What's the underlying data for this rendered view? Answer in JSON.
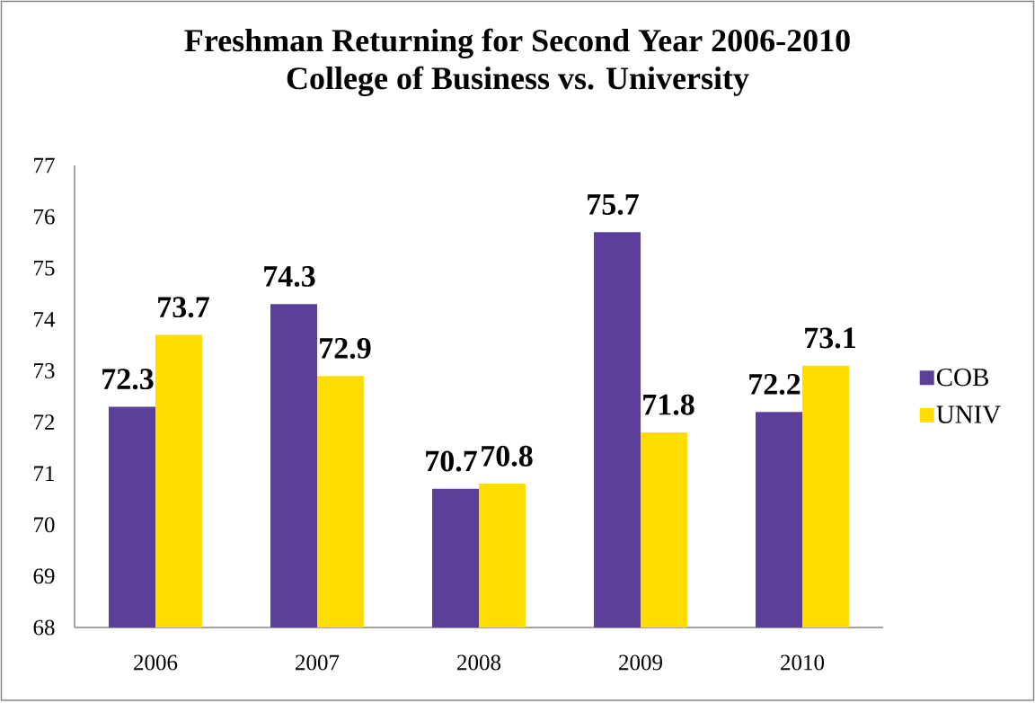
{
  "chart_data": {
    "type": "bar",
    "title": "Freshman Returning for Second Year 2006-2010",
    "subtitle": "College of Business vs. University",
    "categories": [
      "2006",
      "2007",
      "2008",
      "2009",
      "2010"
    ],
    "series": [
      {
        "name": "COB",
        "color": "#5b3f99",
        "values": [
          72.3,
          74.3,
          70.7,
          75.7,
          72.2
        ]
      },
      {
        "name": "UNIV",
        "color": "#ffdd00",
        "values": [
          73.7,
          72.9,
          70.8,
          71.8,
          73.1
        ]
      }
    ],
    "ylim": [
      68,
      77
    ],
    "yticks": [
      68,
      69,
      70,
      71,
      72,
      73,
      74,
      75,
      76,
      77
    ],
    "data_labels": true,
    "legend": "right"
  }
}
